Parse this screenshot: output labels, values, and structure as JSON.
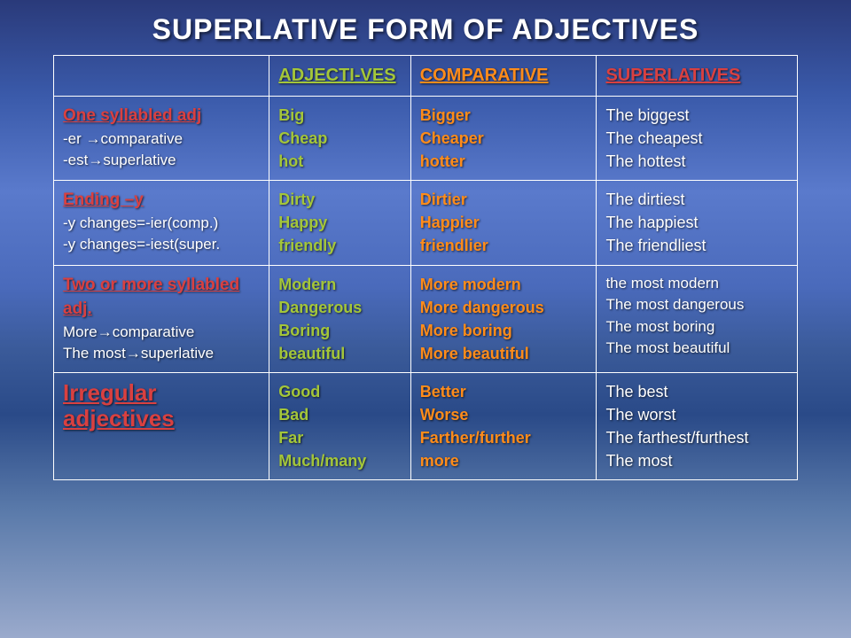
{
  "title": "SUPERLATIVE FORM OF ADJECTIVES",
  "headers": {
    "adj": "ADJECTI-VES",
    "comp": "COMPARATIVE",
    "sup": "SUPERLATIVES"
  },
  "rows": [
    {
      "rule_head": "One syllabled adj",
      "rule_sub1": "-er →comparative",
      "rule_sub2": "-est→superlative",
      "adj": "Big\nCheap\nhot",
      "comp": "Bigger\nCheaper\nhotter",
      "sup": "The biggest\nThe cheapest\nThe hottest"
    },
    {
      "rule_head": "Ending –y",
      "rule_sub1": "-y changes=-ier(comp.)",
      "rule_sub2": "-y changes=-iest(super.",
      "adj": "Dirty\nHappy\nfriendly",
      "comp": "Dirtier\nHappier\nfriendlier",
      "sup": "The dirtiest\nThe happiest\nThe friendliest"
    },
    {
      "rule_head": "Two or more syllabled adj.",
      "rule_sub1": "More→comparative",
      "rule_sub2": "The most→superlative",
      "adj": "Modern\nDangerous\nBoring\nbeautiful",
      "comp": "More modern\nMore dangerous\nMore boring\nMore beautiful",
      "sup": "the most modern\nThe most dangerous\nThe most boring\nThe most beautiful"
    },
    {
      "irr_head": "Irregular adjectives",
      "adj": "Good\nBad\nFar\nMuch/many",
      "comp": "Better\nWorse\nFarther/further\nmore",
      "sup": "The best\nThe worst\nThe farthest/furthest\nThe most"
    }
  ]
}
